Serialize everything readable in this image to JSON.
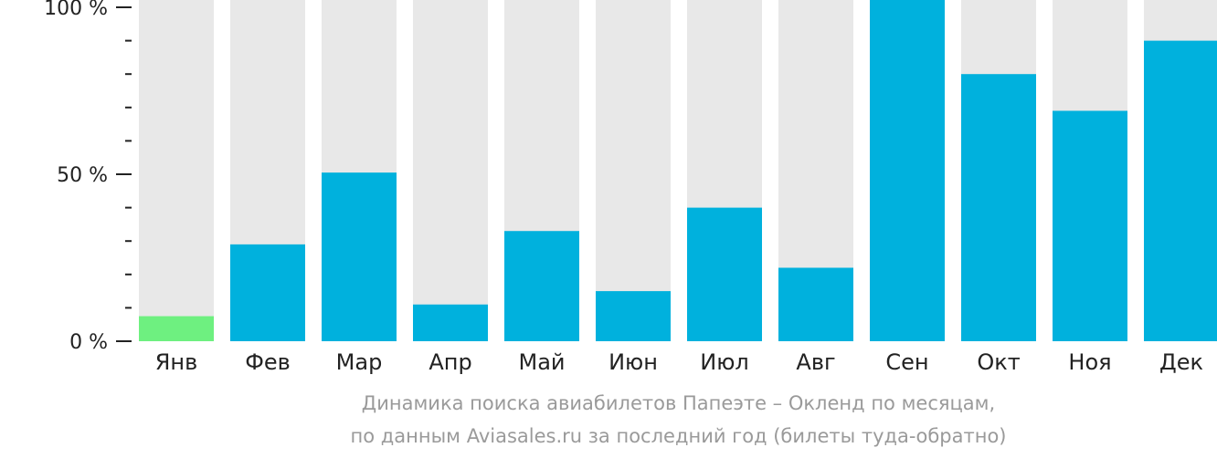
{
  "chart_data": {
    "type": "bar",
    "categories": [
      "Янв",
      "Фев",
      "Мар",
      "Апр",
      "Май",
      "Июн",
      "Июл",
      "Авг",
      "Сен",
      "Окт",
      "Ноя",
      "Дек"
    ],
    "values": [
      7.5,
      29,
      50.5,
      11,
      33,
      15,
      40,
      22,
      105,
      80,
      69,
      90
    ],
    "ylim": [
      0,
      100
    ],
    "yticks": [
      {
        "value": 0,
        "label": "0 %"
      },
      {
        "value": 50,
        "label": "50 %"
      },
      {
        "value": 100,
        "label": "100 %"
      }
    ],
    "minor_ticks": [
      10,
      20,
      30,
      40,
      60,
      70,
      80,
      90
    ],
    "highlight_index": 0,
    "grid": false,
    "colors": {
      "bar": "#00b1dd",
      "highlight": "#6ef080",
      "background_bar": "#e8e8e8",
      "axis": "#222222"
    },
    "caption_line1": "Динамика поиска авиабилетов Папеэте – Окленд по месяцам,",
    "caption_line2": "по данным Aviasales.ru за последний год (билеты туда-обратно)"
  }
}
